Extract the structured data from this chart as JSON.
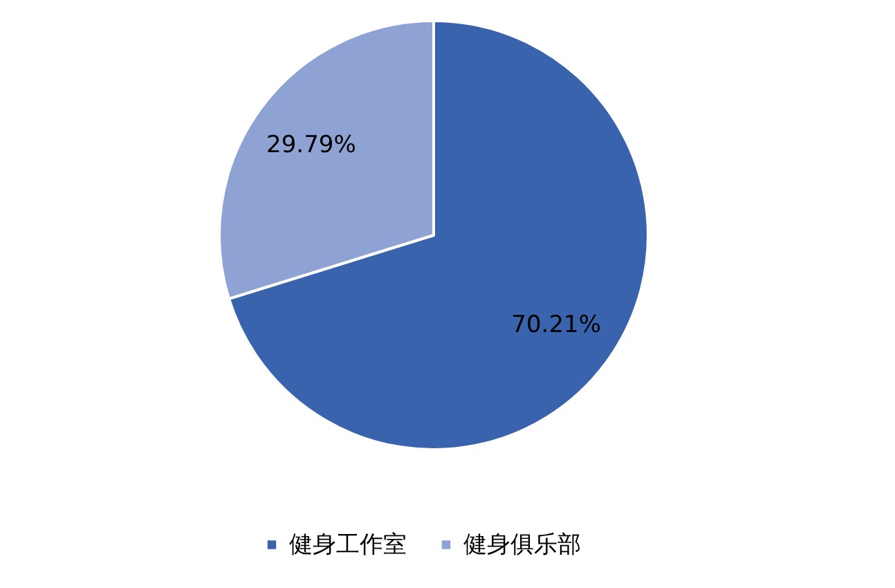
{
  "chart_data": {
    "type": "pie",
    "categories": [
      "健身工作室",
      "健身俱乐部"
    ],
    "values": [
      70.21,
      29.79
    ],
    "colors": [
      "#3a63ad",
      "#8fa2d4"
    ],
    "value_labels": [
      "70.21%",
      "29.79%"
    ],
    "legend": "bottom"
  }
}
